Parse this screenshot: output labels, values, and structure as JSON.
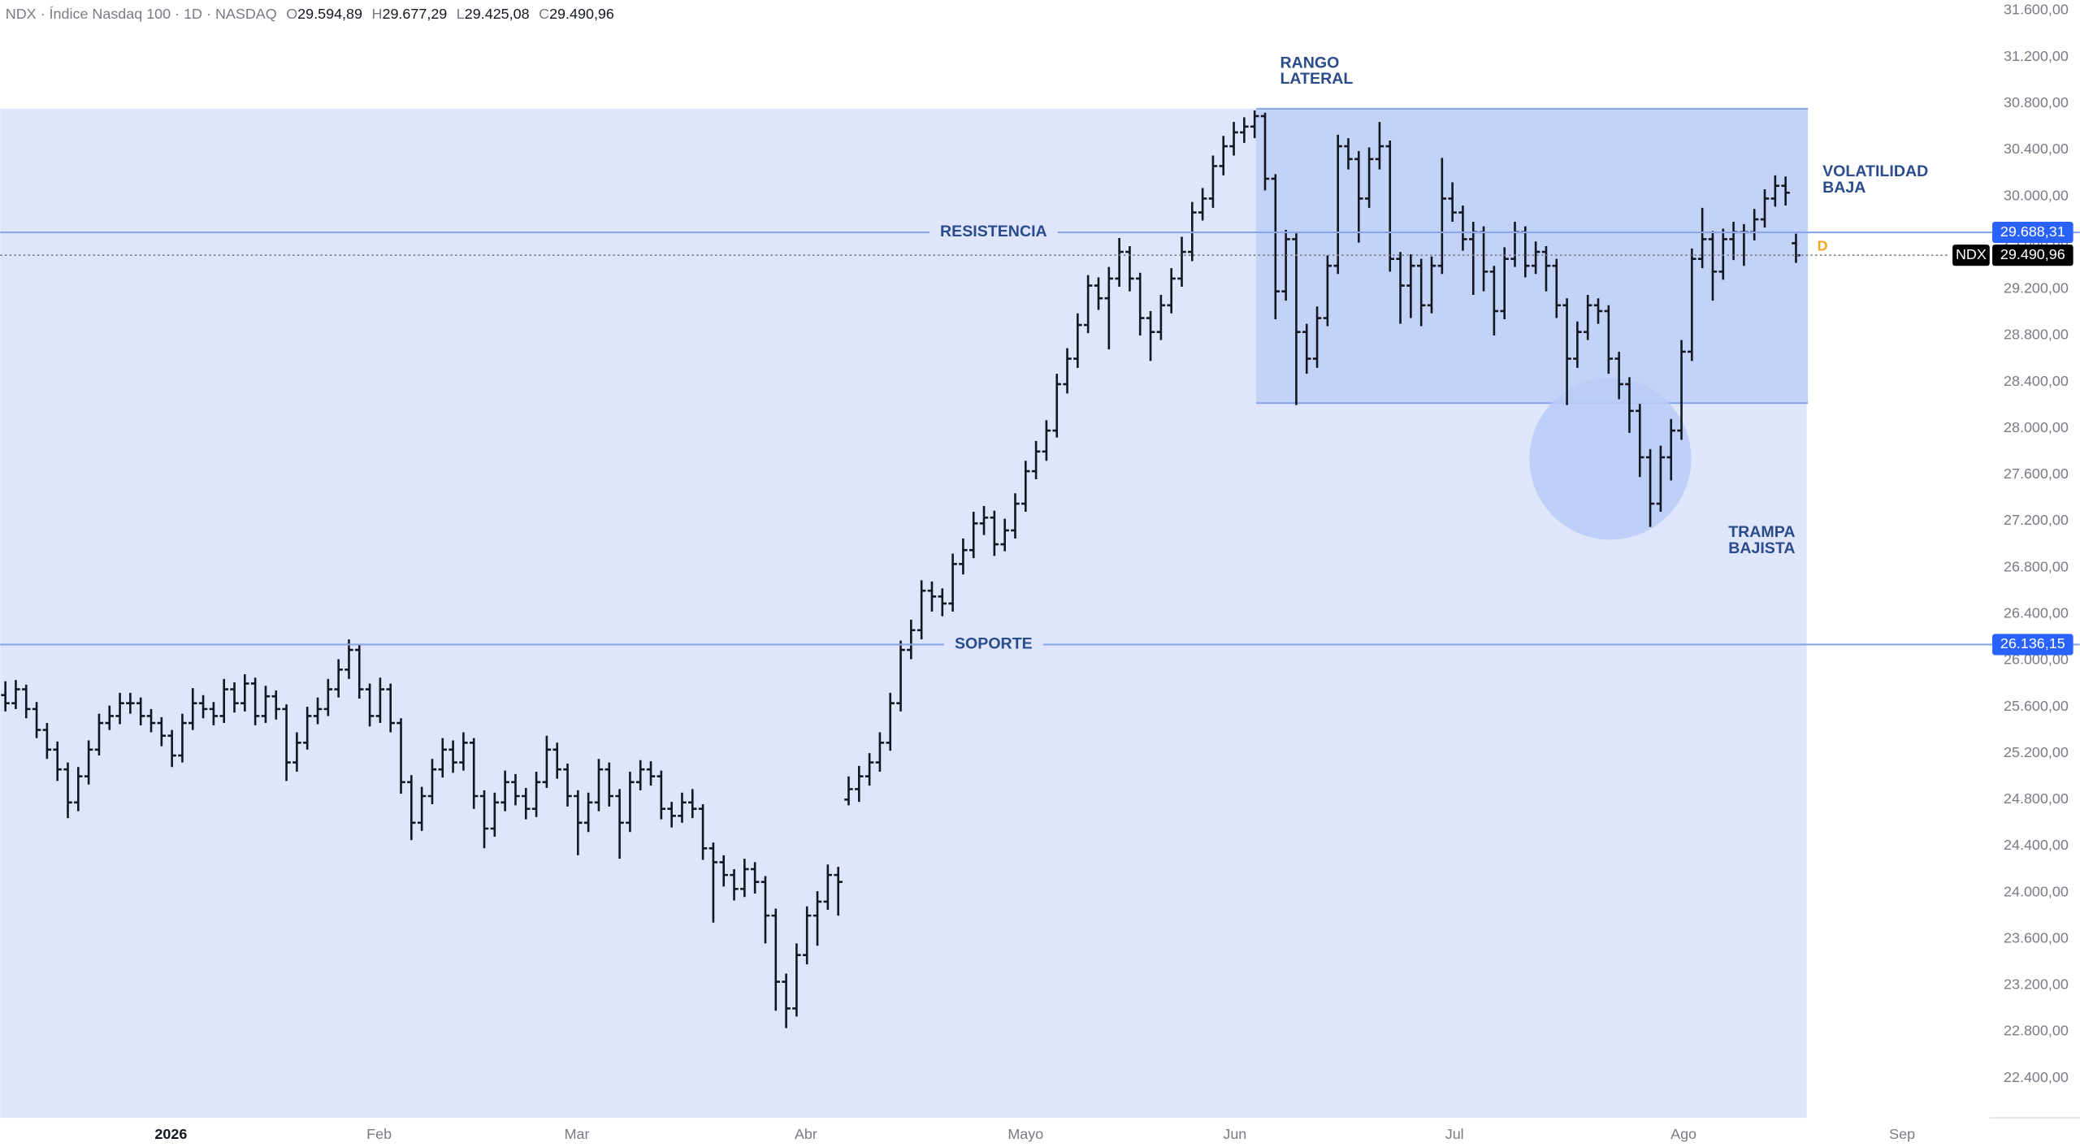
{
  "header": {
    "symbol_line": "NDX · Índice Nasdaq 100 · 1D · NASDAQ",
    "ohlc": [
      {
        "key": "O",
        "value": "29.594,89"
      },
      {
        "key": "H",
        "value": "29.677,29"
      },
      {
        "key": "L",
        "value": "29.425,08"
      },
      {
        "key": "C",
        "value": "29.490,96"
      }
    ]
  },
  "chart_data": {
    "type": "ohlc",
    "color": "#131722",
    "grid": false,
    "ylim": [
      22057,
      31691
    ],
    "yticks": [
      {
        "value": 31600,
        "label": "31.600,00"
      },
      {
        "value": 31200,
        "label": "31.200,00"
      },
      {
        "value": 30800,
        "label": "30.800,00"
      },
      {
        "value": 30400,
        "label": "30.400,00"
      },
      {
        "value": 30000,
        "label": "30.000,00"
      },
      {
        "value": 29600,
        "label": "29.600,00"
      },
      {
        "value": 29200,
        "label": "29.200,00"
      },
      {
        "value": 28800,
        "label": "28.800,00"
      },
      {
        "value": 28400,
        "label": "28.400,00"
      },
      {
        "value": 28000,
        "label": "28.000,00"
      },
      {
        "value": 27600,
        "label": "27.600,00"
      },
      {
        "value": 27200,
        "label": "27.200,00"
      },
      {
        "value": 26800,
        "label": "26.800,00"
      },
      {
        "value": 26400,
        "label": "26.400,00"
      },
      {
        "value": 26000,
        "label": "26.000,00"
      },
      {
        "value": 25600,
        "label": "25.600,00"
      },
      {
        "value": 25200,
        "label": "25.200,00"
      },
      {
        "value": 24800,
        "label": "24.800,00"
      },
      {
        "value": 24400,
        "label": "24.400,00"
      },
      {
        "value": 24000,
        "label": "24.000,00"
      },
      {
        "value": 23600,
        "label": "23.600,00"
      },
      {
        "value": 23200,
        "label": "23.200,00"
      },
      {
        "value": 22800,
        "label": "22.800,00"
      },
      {
        "value": 22400,
        "label": "22.400,00"
      }
    ],
    "xlim": [
      -0.5,
      190.6
    ],
    "xticks": [
      {
        "value": 15.9,
        "label": "2026"
      },
      {
        "value": 35.9,
        "label": "Feb"
      },
      {
        "value": 54.9,
        "label": "Mar"
      },
      {
        "value": 76.9,
        "label": "Abr"
      },
      {
        "value": 98,
        "label": "Mayo"
      },
      {
        "value": 118.1,
        "label": "Jun"
      },
      {
        "value": 139.2,
        "label": "Jul"
      },
      {
        "value": 161.2,
        "label": "Ago"
      },
      {
        "value": 182.2,
        "label": "Sep"
      }
    ],
    "x": [
      0,
      1,
      2,
      3,
      4,
      5,
      6,
      7,
      8,
      9,
      10,
      11,
      12,
      13,
      14,
      15,
      16,
      17,
      18,
      19,
      20,
      21,
      22,
      23,
      24,
      25,
      26,
      27,
      28,
      29,
      30,
      31,
      32,
      33,
      34,
      35,
      36,
      37,
      38,
      39,
      40,
      41,
      42,
      43,
      44,
      45,
      46,
      47,
      48,
      49,
      50,
      51,
      52,
      53,
      54,
      55,
      56,
      57,
      58,
      59,
      60,
      61,
      62,
      63,
      64,
      65,
      66,
      67,
      68,
      69,
      70,
      71,
      72,
      73,
      74,
      75,
      76,
      77,
      78,
      79,
      80,
      81,
      82,
      83,
      84,
      85,
      86,
      87,
      88,
      89,
      90,
      91,
      92,
      93,
      94,
      95,
      96,
      97,
      98,
      99,
      100,
      101,
      102,
      103,
      104,
      105,
      106,
      107,
      108,
      109,
      110,
      111,
      112,
      113,
      114,
      115,
      116,
      117,
      118,
      119,
      120,
      121,
      122,
      123,
      124,
      125,
      126,
      127,
      128,
      129,
      130,
      131,
      132,
      133,
      134,
      135,
      136,
      137,
      138,
      139,
      140,
      141,
      142,
      143,
      144,
      145,
      146,
      147,
      148,
      149,
      150,
      151,
      152,
      153,
      154,
      155,
      156,
      157,
      158,
      159,
      160,
      161,
      162,
      163,
      164,
      165,
      166,
      167,
      168,
      169,
      170,
      171,
      172
    ],
    "ohlc": [
      [
        25700,
        25820,
        25560,
        25630
      ],
      [
        25630,
        25830,
        25580,
        25750
      ],
      [
        25750,
        25790,
        25500,
        25580
      ],
      [
        25580,
        25640,
        25330,
        25400
      ],
      [
        25400,
        25460,
        25150,
        25230
      ],
      [
        25230,
        25300,
        24960,
        25060
      ],
      [
        25060,
        25120,
        24640,
        24775
      ],
      [
        24775,
        25080,
        24700,
        25000
      ],
      [
        25000,
        25310,
        24930,
        25230
      ],
      [
        25230,
        25540,
        25180,
        25460
      ],
      [
        25460,
        25610,
        25400,
        25520
      ],
      [
        25520,
        25720,
        25450,
        25630
      ],
      [
        25630,
        25720,
        25540,
        25630
      ],
      [
        25630,
        25680,
        25440,
        25520
      ],
      [
        25520,
        25580,
        25380,
        25460
      ],
      [
        25460,
        25510,
        25260,
        25350
      ],
      [
        25350,
        25400,
        25080,
        25180
      ],
      [
        25180,
        25540,
        25120,
        25460
      ],
      [
        25460,
        25760,
        25400,
        25630
      ],
      [
        25630,
        25700,
        25500,
        25580
      ],
      [
        25580,
        25640,
        25440,
        25520
      ],
      [
        25520,
        25840,
        25460,
        25750
      ],
      [
        25750,
        25810,
        25550,
        25630
      ],
      [
        25630,
        25880,
        25560,
        25800
      ],
      [
        25800,
        25850,
        25440,
        25520
      ],
      [
        25520,
        25780,
        25460,
        25690
      ],
      [
        25690,
        25740,
        25490,
        25580
      ],
      [
        25580,
        25620,
        24960,
        25120
      ],
      [
        25120,
        25380,
        25040,
        25290
      ],
      [
        25290,
        25600,
        25230,
        25520
      ],
      [
        25520,
        25680,
        25450,
        25580
      ],
      [
        25580,
        25840,
        25520,
        25750
      ],
      [
        25750,
        26010,
        25680,
        25920
      ],
      [
        25920,
        26180,
        25840,
        26090
      ],
      [
        26090,
        26130,
        25670,
        25750
      ],
      [
        25750,
        25800,
        25430,
        25520
      ],
      [
        25520,
        25850,
        25460,
        25750
      ],
      [
        25750,
        25800,
        25380,
        25460
      ],
      [
        25460,
        25500,
        24850,
        24950
      ],
      [
        24950,
        25010,
        24450,
        24600
      ],
      [
        24600,
        24910,
        24530,
        24830
      ],
      [
        24830,
        25150,
        24760,
        25060
      ],
      [
        25060,
        25330,
        24990,
        25230
      ],
      [
        25230,
        25310,
        25030,
        25120
      ],
      [
        25120,
        25380,
        25050,
        25290
      ],
      [
        25290,
        25330,
        24720,
        24830
      ],
      [
        24830,
        24880,
        24380,
        24550
      ],
      [
        24550,
        24860,
        24480,
        24775
      ],
      [
        24775,
        25050,
        24700,
        24950
      ],
      [
        24950,
        25020,
        24750,
        24830
      ],
      [
        24830,
        24900,
        24630,
        24720
      ],
      [
        24720,
        25040,
        24650,
        24950
      ],
      [
        24950,
        25350,
        24900,
        25230
      ],
      [
        25230,
        25290,
        24980,
        25060
      ],
      [
        25060,
        25110,
        24740,
        24830
      ],
      [
        24830,
        24880,
        24320,
        24600
      ],
      [
        24600,
        24860,
        24520,
        24775
      ],
      [
        24775,
        25150,
        24700,
        25060
      ],
      [
        25060,
        25120,
        24740,
        24830
      ],
      [
        24830,
        24890,
        24290,
        24600
      ],
      [
        24600,
        25040,
        24520,
        24950
      ],
      [
        24950,
        25140,
        24880,
        25060
      ],
      [
        25060,
        25130,
        24920,
        25000
      ],
      [
        25000,
        25050,
        24630,
        24720
      ],
      [
        24720,
        24780,
        24560,
        24660
      ],
      [
        24660,
        24860,
        24600,
        24775
      ],
      [
        24775,
        24890,
        24640,
        24720
      ],
      [
        24720,
        24760,
        24280,
        24380
      ],
      [
        24380,
        24430,
        23740,
        24260
      ],
      [
        24260,
        24320,
        24050,
        24150
      ],
      [
        24150,
        24200,
        23930,
        24030
      ],
      [
        24030,
        24290,
        23960,
        24200
      ],
      [
        24200,
        24260,
        23990,
        24090
      ],
      [
        24090,
        24140,
        23560,
        23800
      ],
      [
        23800,
        23860,
        22980,
        23230
      ],
      [
        23230,
        23300,
        22830,
        23000
      ],
      [
        23000,
        23560,
        22930,
        23460
      ],
      [
        23460,
        23880,
        23380,
        23800
      ],
      [
        23800,
        24010,
        23540,
        23920
      ],
      [
        23920,
        24240,
        23850,
        24150
      ],
      [
        24150,
        24220,
        23800,
        24090
      ],
      [
        24800,
        25000,
        24750,
        24890
      ],
      [
        24890,
        25090,
        24780,
        25000
      ],
      [
        25000,
        25200,
        24920,
        25120
      ],
      [
        25120,
        25380,
        25040,
        25290
      ],
      [
        25290,
        25720,
        25220,
        25630
      ],
      [
        25630,
        26170,
        25560,
        26090
      ],
      [
        26090,
        26350,
        26010,
        26260
      ],
      [
        26260,
        26690,
        26180,
        26600
      ],
      [
        26600,
        26680,
        26420,
        26550
      ],
      [
        26550,
        26620,
        26380,
        26490
      ],
      [
        26490,
        26920,
        26420,
        26830
      ],
      [
        26830,
        27050,
        26740,
        26950
      ],
      [
        26950,
        27280,
        26880,
        27180
      ],
      [
        27180,
        27330,
        27080,
        27230
      ],
      [
        27230,
        27290,
        26900,
        27000
      ],
      [
        27000,
        27220,
        26940,
        27120
      ],
      [
        27120,
        27440,
        27050,
        27350
      ],
      [
        27350,
        27720,
        27280,
        27630
      ],
      [
        27630,
        27890,
        27560,
        27800
      ],
      [
        27800,
        28070,
        27720,
        27980
      ],
      [
        27980,
        28470,
        27920,
        28380
      ],
      [
        28380,
        28690,
        28300,
        28600
      ],
      [
        28600,
        28990,
        28520,
        28890
      ],
      [
        28890,
        29320,
        28820,
        29230
      ],
      [
        29230,
        29300,
        29020,
        29120
      ],
      [
        29120,
        29390,
        28680,
        29290
      ],
      [
        29290,
        29640,
        29220,
        29520
      ],
      [
        29520,
        29570,
        29180,
        29290
      ],
      [
        29290,
        29340,
        28800,
        28950
      ],
      [
        28950,
        29010,
        28580,
        28830
      ],
      [
        28830,
        29150,
        28760,
        29060
      ],
      [
        29060,
        29380,
        28990,
        29290
      ],
      [
        29290,
        29650,
        29220,
        29520
      ],
      [
        29520,
        29950,
        29440,
        29860
      ],
      [
        29860,
        30070,
        29790,
        29980
      ],
      [
        29980,
        30350,
        29900,
        30260
      ],
      [
        30260,
        30520,
        30180,
        30430
      ],
      [
        30430,
        30640,
        30350,
        30550
      ],
      [
        30550,
        30680,
        30460,
        30600
      ],
      [
        30600,
        30740,
        30500,
        30690
      ],
      [
        30690,
        30720,
        30050,
        30150
      ],
      [
        30150,
        30190,
        28940,
        29180
      ],
      [
        29180,
        29710,
        29100,
        29630
      ],
      [
        29630,
        29680,
        28200,
        28830
      ],
      [
        28830,
        28900,
        28470,
        28600
      ],
      [
        28600,
        29050,
        28520,
        28950
      ],
      [
        28950,
        29490,
        28880,
        29400
      ],
      [
        29400,
        30530,
        29330,
        30430
      ],
      [
        30430,
        30500,
        30230,
        30320
      ],
      [
        30320,
        30390,
        29600,
        29980
      ],
      [
        29980,
        30420,
        29900,
        30320
      ],
      [
        30320,
        30640,
        30230,
        30430
      ],
      [
        30430,
        30480,
        29350,
        29460
      ],
      [
        29460,
        29520,
        28900,
        29230
      ],
      [
        29230,
        29500,
        28950,
        29400
      ],
      [
        29400,
        29460,
        28880,
        29060
      ],
      [
        29060,
        29480,
        28990,
        29400
      ],
      [
        29400,
        30330,
        29330,
        29980
      ],
      [
        29980,
        30120,
        29780,
        29860
      ],
      [
        29860,
        29920,
        29530,
        29630
      ],
      [
        29630,
        29780,
        29150,
        29690
      ],
      [
        29690,
        29740,
        29180,
        29350
      ],
      [
        29350,
        29400,
        28800,
        29010
      ],
      [
        29010,
        29560,
        28940,
        29460
      ],
      [
        29460,
        29780,
        29390,
        29690
      ],
      [
        29690,
        29740,
        29300,
        29400
      ],
      [
        29400,
        29610,
        29330,
        29520
      ],
      [
        29520,
        29570,
        29180,
        29400
      ],
      [
        29400,
        29460,
        28950,
        29060
      ],
      [
        29060,
        29120,
        28200,
        28600
      ],
      [
        28600,
        28920,
        28520,
        28830
      ],
      [
        28830,
        29150,
        28760,
        29060
      ],
      [
        29060,
        29120,
        28900,
        29010
      ],
      [
        29010,
        29060,
        28470,
        28600
      ],
      [
        28600,
        28660,
        28250,
        28380
      ],
      [
        28380,
        28440,
        27960,
        28150
      ],
      [
        28150,
        28210,
        27580,
        27750
      ],
      [
        27750,
        27820,
        27150,
        27350
      ],
      [
        27350,
        27850,
        27280,
        27750
      ],
      [
        27750,
        28080,
        27550,
        27980
      ],
      [
        27980,
        28760,
        27900,
        28660
      ],
      [
        28660,
        29550,
        28580,
        29460
      ],
      [
        29460,
        29900,
        29380,
        29630
      ],
      [
        29630,
        29700,
        29100,
        29350
      ],
      [
        29350,
        29720,
        29280,
        29630
      ],
      [
        29630,
        29780,
        29450,
        29690
      ],
      [
        29690,
        29760,
        29400,
        29690
      ],
      [
        29690,
        29890,
        29620,
        29800
      ],
      [
        29800,
        30060,
        29730,
        29980
      ],
      [
        29980,
        30180,
        29910,
        30090
      ],
      [
        30090,
        30170,
        29920,
        30030
      ],
      [
        29594.89,
        29677.29,
        29425.08,
        29490.96
      ]
    ],
    "levels": [
      {
        "name": "RESISTENCIA",
        "value": 29688.31,
        "label": "29.688,31"
      },
      {
        "name": "SOPORTE",
        "value": 26136.15,
        "label": "26.136,15"
      }
    ],
    "last": {
      "symbol": "NDX",
      "value": 29490.96,
      "label": "29.490,96"
    },
    "annotations": [
      {
        "lines": [
          "RANGO",
          "LATERAL"
        ]
      },
      {
        "lines": [
          "VOLATILIDAD",
          "BAJA"
        ]
      },
      {
        "lines": [
          "TRAMPA",
          "BAJISTA"
        ]
      }
    ],
    "marker": "D"
  }
}
